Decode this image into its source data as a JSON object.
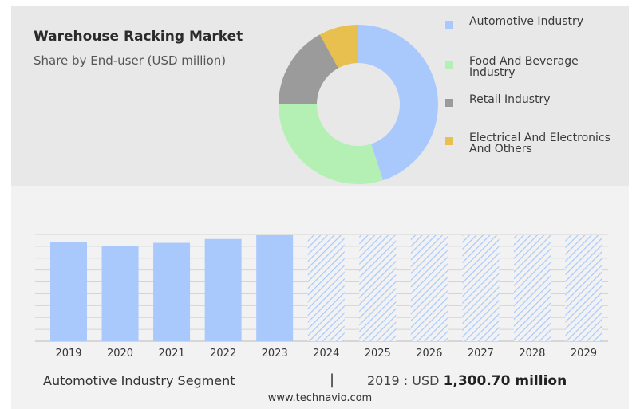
{
  "chart_data": [
    {
      "type": "pie",
      "title": "Warehouse Racking Market",
      "subtitle": "Share by End-user (USD million)",
      "hole": true,
      "legend_position": "right",
      "slices": [
        {
          "label": "Automotive Industry",
          "value": 45,
          "color": "#a9c8fb"
        },
        {
          "label": "Food And Beverage Industry",
          "value": 30,
          "color": "#b4f0b4"
        },
        {
          "label": "Retail Industry",
          "value": 17,
          "color": "#9b9b9b"
        },
        {
          "label": "Electrical And Electronics And Others",
          "value": 8,
          "color": "#e8c050"
        }
      ]
    },
    {
      "type": "bar",
      "categories": [
        "2019",
        "2020",
        "2021",
        "2022",
        "2023",
        "2024",
        "2025",
        "2026",
        "2027",
        "2028",
        "2029"
      ],
      "values": [
        1300.7,
        1250,
        1290,
        1340,
        1390,
        1390,
        1390,
        1390,
        1390,
        1390,
        1390
      ],
      "forecast_from": "2024",
      "ylim": [
        0,
        1400
      ],
      "grid": true,
      "color": "#a9c8fb",
      "forecast_color": "#a9c8fb"
    }
  ],
  "footer": {
    "segment": "Automotive Industry Segment",
    "separator": "|",
    "value_prefix": "2019 : USD",
    "value_bold": "1,300.70 million"
  },
  "source": "www.technavio.com"
}
